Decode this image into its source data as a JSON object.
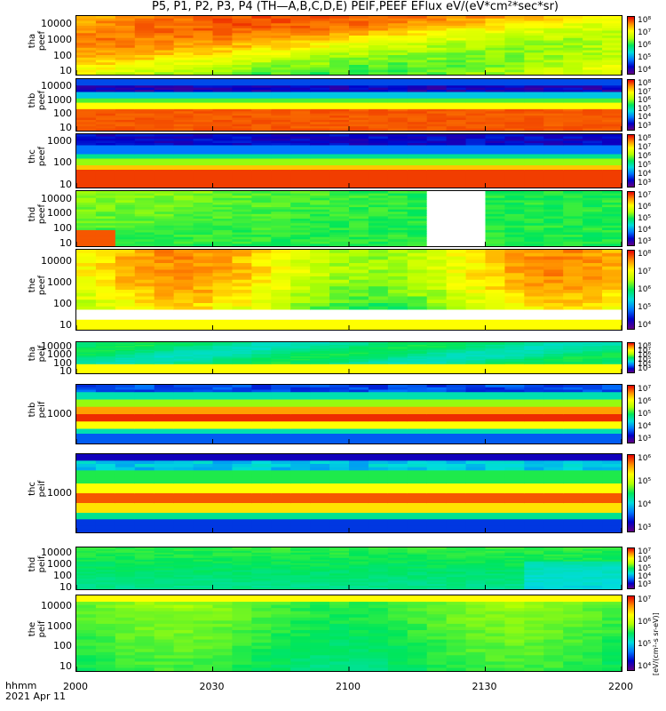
{
  "title": "P5, P1, P2, P3, P4 (TH—A,B,C,D,E) PEIF,PEEF EFlux eV/(eV*cm²*sec*sr)",
  "x_axis": {
    "label_line1": "hhmm",
    "label_line2": "2021 Apr 11",
    "ticks": [
      "2000",
      "2030",
      "2100",
      "2130",
      "2200"
    ]
  },
  "colorbar_unit": "[eV/(cm²-s sr-eV)]",
  "chart_data": [
    {
      "type": "heatmap",
      "probe": "tha",
      "product": "peef",
      "ylabel": [
        "tha",
        "peef"
      ],
      "y_ticks": [
        "10000",
        "1000",
        "100",
        "10"
      ],
      "colorbar_ticks": [
        "10⁸",
        "10⁷",
        "10⁶",
        "10⁵",
        "10⁴"
      ],
      "scale": "log",
      "y_range": [
        5,
        30000
      ],
      "palette": "rainbow",
      "description": "broad high flux, orange-red over most energies"
    },
    {
      "type": "heatmap",
      "probe": "thb",
      "product": "peef",
      "ylabel": [
        "thb",
        "peef"
      ],
      "y_ticks": [
        "10000",
        "1000",
        "100",
        "10"
      ],
      "colorbar_ticks": [
        "10⁸",
        "10⁷",
        "10⁶",
        "10⁵",
        "10⁴",
        "10³"
      ],
      "scale": "log",
      "y_range": [
        5,
        30000
      ]
    },
    {
      "type": "heatmap",
      "probe": "thc",
      "product": "peef",
      "ylabel": [
        "thc",
        "peef"
      ],
      "y_ticks": [
        "1000",
        "100",
        "10"
      ],
      "colorbar_ticks": [
        "10⁸",
        "10⁷",
        "10⁶",
        "10⁵",
        "10⁴",
        "10³"
      ],
      "scale": "log",
      "y_range": [
        5,
        30000
      ]
    },
    {
      "type": "heatmap",
      "probe": "thd",
      "product": "peef",
      "ylabel": [
        "thd",
        "peef"
      ],
      "y_ticks": [
        "10000",
        "1000",
        "100",
        "10"
      ],
      "colorbar_ticks": [
        "10⁷",
        "10⁶",
        "10⁵",
        "10⁴",
        "10³"
      ],
      "scale": "log",
      "y_range": [
        5,
        30000
      ],
      "data_gap": [
        "2110",
        "2120"
      ]
    },
    {
      "type": "heatmap",
      "probe": "the",
      "product": "peef",
      "ylabel": [
        "the",
        "peef"
      ],
      "y_ticks": [
        "10000",
        "1000",
        "100",
        "10"
      ],
      "colorbar_ticks": [
        "10⁸",
        "10⁷",
        "10⁶",
        "10⁵",
        "10⁴"
      ],
      "scale": "log",
      "y_range": [
        5,
        30000
      ]
    },
    {
      "type": "heatmap",
      "probe": "tha",
      "product": "peif",
      "ylabel": [
        "tha",
        "peif"
      ],
      "y_ticks": [
        "10000",
        "1000",
        "100",
        "10"
      ],
      "colorbar_ticks": [
        "10⁸",
        "10⁷",
        "10⁶",
        "10⁵",
        "10⁴",
        "10³"
      ],
      "scale": "log",
      "y_range": [
        5,
        30000
      ]
    },
    {
      "type": "heatmap",
      "probe": "thb",
      "product": "peif",
      "ylabel": [
        "thb",
        "peif"
      ],
      "y_ticks": [
        "1000"
      ],
      "colorbar_ticks": [
        "10⁷",
        "10⁶",
        "10⁵",
        "10⁴",
        "10³"
      ],
      "scale": "log",
      "y_range": [
        100,
        30000
      ]
    },
    {
      "type": "heatmap",
      "probe": "thc",
      "product": "peif",
      "ylabel": [
        "thc",
        "peif"
      ],
      "y_ticks": [
        "1000"
      ],
      "colorbar_ticks": [
        "10⁶",
        "10⁵",
        "10⁴",
        "10³"
      ],
      "scale": "log",
      "y_range": [
        100,
        30000
      ]
    },
    {
      "type": "heatmap",
      "probe": "thd",
      "product": "peif",
      "ylabel": [
        "thd",
        "peif"
      ],
      "y_ticks": [
        "10000",
        "1000",
        "100",
        "10"
      ],
      "colorbar_ticks": [
        "10⁷",
        "10⁶",
        "10⁵",
        "10⁴",
        "10³"
      ],
      "scale": "log",
      "y_range": [
        5,
        30000
      ]
    },
    {
      "type": "heatmap",
      "probe": "the",
      "product": "peif",
      "ylabel": [
        "the",
        "peif"
      ],
      "y_ticks": [
        "10000",
        "1000",
        "100",
        "10"
      ],
      "colorbar_ticks": [
        "10⁷",
        "10⁶",
        "10⁵",
        "10⁴"
      ],
      "scale": "log",
      "y_range": [
        5,
        30000
      ]
    }
  ]
}
